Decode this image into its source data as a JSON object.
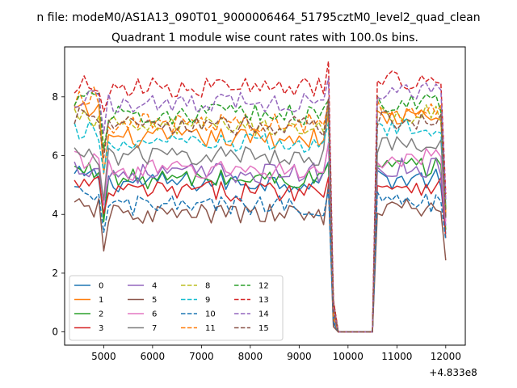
{
  "chart_data": {
    "type": "line",
    "suptitle": "n file: modeM0/AS1A13_090T01_9000006464_51795cztM0_level2_quad_clean",
    "title": "Quadrant 1 module wise count rates with 100.0s bins.",
    "xlabel": "",
    "ylabel": "",
    "x_offset_label": "+4.833e8",
    "xlim": [
      4200,
      12400
    ],
    "ylim": [
      -0.45,
      9.7
    ],
    "x_ticks": [
      5000,
      6000,
      7000,
      8000,
      9000,
      10000,
      11000,
      12000
    ],
    "x_tick_labels": [
      "5000",
      "6000",
      "7000",
      "8000",
      "9000",
      "10000",
      "11000",
      "12000"
    ],
    "y_ticks": [
      0,
      2,
      4,
      6,
      8
    ],
    "y_tick_labels": [
      "0",
      "2",
      "4",
      "6",
      "8"
    ],
    "grid": false,
    "legend_placement": "lower-left",
    "legend_columns": 4,
    "x_range": {
      "start": 4400,
      "end": 12000,
      "step": 100
    },
    "gap": {
      "start": 9800,
      "end": 10500,
      "value": 0.0
    },
    "series": [
      {
        "name": "0",
        "color": "#1f77b4",
        "dash": "solid",
        "segments": [
          {
            "from": 4400,
            "to": 4900,
            "level": 5.3
          },
          {
            "from": 5000,
            "to": 5000,
            "level": 4.0
          },
          {
            "from": 5100,
            "to": 9500,
            "level": 5.1
          },
          {
            "from": 9600,
            "to": 9600,
            "level": 5.9
          },
          {
            "from": 9700,
            "to": 9700,
            "level": 0.6
          },
          {
            "from": 10600,
            "to": 10600,
            "level": 5.3
          },
          {
            "from": 10700,
            "to": 11900,
            "level": 5.2
          },
          {
            "from": 12000,
            "to": 12000,
            "level": 3.2
          }
        ]
      },
      {
        "name": "1",
        "color": "#ff7f0e",
        "dash": "solid",
        "segments": [
          {
            "from": 4400,
            "to": 4900,
            "level": 7.5
          },
          {
            "from": 5000,
            "to": 5000,
            "level": 5.6
          },
          {
            "from": 5100,
            "to": 9500,
            "level": 6.6
          },
          {
            "from": 9600,
            "to": 9600,
            "level": 7.6
          },
          {
            "from": 9700,
            "to": 9700,
            "level": 0.8
          },
          {
            "from": 10600,
            "to": 10600,
            "level": 7.4
          },
          {
            "from": 10700,
            "to": 11900,
            "level": 7.3
          },
          {
            "from": 12000,
            "to": 12000,
            "level": 4.0
          }
        ]
      },
      {
        "name": "2",
        "color": "#2ca02c",
        "dash": "solid",
        "segments": [
          {
            "from": 4400,
            "to": 4900,
            "level": 5.5
          },
          {
            "from": 5000,
            "to": 5000,
            "level": 4.1
          },
          {
            "from": 5100,
            "to": 9500,
            "level": 5.2
          },
          {
            "from": 9600,
            "to": 9600,
            "level": 6.0
          },
          {
            "from": 9700,
            "to": 9700,
            "level": 0.6
          },
          {
            "from": 10600,
            "to": 10600,
            "level": 5.6
          },
          {
            "from": 10700,
            "to": 11900,
            "level": 5.6
          },
          {
            "from": 12000,
            "to": 12000,
            "level": 3.3
          }
        ]
      },
      {
        "name": "3",
        "color": "#d62728",
        "dash": "solid",
        "segments": [
          {
            "from": 4400,
            "to": 4900,
            "level": 5.0
          },
          {
            "from": 5000,
            "to": 5000,
            "level": 3.8
          },
          {
            "from": 5100,
            "to": 9500,
            "level": 4.8
          },
          {
            "from": 9600,
            "to": 9600,
            "level": 5.6
          },
          {
            "from": 9700,
            "to": 9700,
            "level": 0.5
          },
          {
            "from": 10600,
            "to": 10600,
            "level": 5.0
          },
          {
            "from": 10700,
            "to": 11900,
            "level": 5.0
          },
          {
            "from": 12000,
            "to": 12000,
            "level": 3.0
          }
        ]
      },
      {
        "name": "4",
        "color": "#9467bd",
        "dash": "solid",
        "segments": [
          {
            "from": 4400,
            "to": 4900,
            "level": 5.6
          },
          {
            "from": 5000,
            "to": 5000,
            "level": 4.3
          },
          {
            "from": 5100,
            "to": 9500,
            "level": 5.4
          },
          {
            "from": 9600,
            "to": 9600,
            "level": 6.1
          },
          {
            "from": 9700,
            "to": 9700,
            "level": 0.6
          },
          {
            "from": 10600,
            "to": 10600,
            "level": 5.7
          },
          {
            "from": 10700,
            "to": 11900,
            "level": 5.6
          },
          {
            "from": 12000,
            "to": 12000,
            "level": 3.4
          }
        ]
      },
      {
        "name": "5",
        "color": "#8c564b",
        "dash": "solid",
        "segments": [
          {
            "from": 4400,
            "to": 4900,
            "level": 4.2
          },
          {
            "from": 5000,
            "to": 5000,
            "level": 2.8
          },
          {
            "from": 5100,
            "to": 9500,
            "level": 4.0
          },
          {
            "from": 9600,
            "to": 9600,
            "level": 4.8
          },
          {
            "from": 9700,
            "to": 9700,
            "level": 0.4
          },
          {
            "from": 10600,
            "to": 10600,
            "level": 4.2
          },
          {
            "from": 10700,
            "to": 11900,
            "level": 4.2
          },
          {
            "from": 12000,
            "to": 12000,
            "level": 2.2
          }
        ]
      },
      {
        "name": "6",
        "color": "#e377c2",
        "dash": "solid",
        "segments": [
          {
            "from": 4400,
            "to": 4900,
            "level": 5.9
          },
          {
            "from": 5000,
            "to": 5000,
            "level": 4.5
          },
          {
            "from": 5100,
            "to": 9500,
            "level": 5.5
          },
          {
            "from": 9600,
            "to": 9600,
            "level": 6.3
          },
          {
            "from": 9700,
            "to": 9700,
            "level": 0.7
          },
          {
            "from": 10600,
            "to": 10600,
            "level": 6.0
          },
          {
            "from": 10700,
            "to": 11900,
            "level": 5.9
          },
          {
            "from": 12000,
            "to": 12000,
            "level": 3.5
          }
        ]
      },
      {
        "name": "7",
        "color": "#7f7f7f",
        "dash": "solid",
        "segments": [
          {
            "from": 4400,
            "to": 4900,
            "level": 6.0
          },
          {
            "from": 5000,
            "to": 5000,
            "level": 4.8
          },
          {
            "from": 5100,
            "to": 9500,
            "level": 6.0
          },
          {
            "from": 9600,
            "to": 9600,
            "level": 7.8
          },
          {
            "from": 9700,
            "to": 9700,
            "level": 0.7
          },
          {
            "from": 10600,
            "to": 10600,
            "level": 6.4
          },
          {
            "from": 10700,
            "to": 11900,
            "level": 6.3
          },
          {
            "from": 12000,
            "to": 12000,
            "level": 3.6
          }
        ]
      },
      {
        "name": "8",
        "color": "#bcbd22",
        "dash": "dashed",
        "segments": [
          {
            "from": 4400,
            "to": 4900,
            "level": 7.3
          },
          {
            "from": 5000,
            "to": 5000,
            "level": 5.9
          },
          {
            "from": 5100,
            "to": 9500,
            "level": 7.0
          },
          {
            "from": 9600,
            "to": 9600,
            "level": 7.8
          },
          {
            "from": 9700,
            "to": 9700,
            "level": 0.8
          },
          {
            "from": 10600,
            "to": 10600,
            "level": 7.3
          },
          {
            "from": 10700,
            "to": 11900,
            "level": 7.4
          },
          {
            "from": 12000,
            "to": 12000,
            "level": 4.2
          }
        ]
      },
      {
        "name": "9",
        "color": "#17becf",
        "dash": "dashed",
        "segments": [
          {
            "from": 4400,
            "to": 4900,
            "level": 6.8
          },
          {
            "from": 5000,
            "to": 5000,
            "level": 5.3
          },
          {
            "from": 5100,
            "to": 9500,
            "level": 6.4
          },
          {
            "from": 9600,
            "to": 9600,
            "level": 7.2
          },
          {
            "from": 9700,
            "to": 9700,
            "level": 0.7
          },
          {
            "from": 10600,
            "to": 10600,
            "level": 6.9
          },
          {
            "from": 10700,
            "to": 11900,
            "level": 6.9
          },
          {
            "from": 12000,
            "to": 12000,
            "level": 4.0
          }
        ]
      },
      {
        "name": "10",
        "color": "#1f77b4",
        "dash": "dashed",
        "segments": [
          {
            "from": 4400,
            "to": 4900,
            "level": 4.6
          },
          {
            "from": 5000,
            "to": 5000,
            "level": 3.4
          },
          {
            "from": 5100,
            "to": 9500,
            "level": 4.3
          },
          {
            "from": 9600,
            "to": 9600,
            "level": 5.0
          },
          {
            "from": 9700,
            "to": 9700,
            "level": 0.5
          },
          {
            "from": 10600,
            "to": 10600,
            "level": 4.6
          },
          {
            "from": 10700,
            "to": 11900,
            "level": 4.4
          },
          {
            "from": 12000,
            "to": 12000,
            "level": 2.8
          }
        ]
      },
      {
        "name": "11",
        "color": "#ff7f0e",
        "dash": "dashed",
        "segments": [
          {
            "from": 4400,
            "to": 4900,
            "level": 8.0
          },
          {
            "from": 5000,
            "to": 5000,
            "level": 6.3
          },
          {
            "from": 5100,
            "to": 9500,
            "level": 7.1
          },
          {
            "from": 9600,
            "to": 9600,
            "level": 8.0
          },
          {
            "from": 9700,
            "to": 9700,
            "level": 0.8
          },
          {
            "from": 10600,
            "to": 10600,
            "level": 7.8
          },
          {
            "from": 10700,
            "to": 11900,
            "level": 7.5
          },
          {
            "from": 12000,
            "to": 12000,
            "level": 4.4
          }
        ]
      },
      {
        "name": "12",
        "color": "#2ca02c",
        "dash": "dashed",
        "segments": [
          {
            "from": 4400,
            "to": 4900,
            "level": 8.0
          },
          {
            "from": 5000,
            "to": 5000,
            "level": 6.5
          },
          {
            "from": 5100,
            "to": 9500,
            "level": 7.4
          },
          {
            "from": 9600,
            "to": 9600,
            "level": 8.2
          },
          {
            "from": 9700,
            "to": 9700,
            "level": 0.8
          },
          {
            "from": 10600,
            "to": 10600,
            "level": 8.0
          },
          {
            "from": 10700,
            "to": 11900,
            "level": 7.8
          },
          {
            "from": 12000,
            "to": 12000,
            "level": 4.5
          }
        ]
      },
      {
        "name": "13",
        "color": "#d62728",
        "dash": "dashed",
        "segments": [
          {
            "from": 4400,
            "to": 4900,
            "level": 8.4
          },
          {
            "from": 5000,
            "to": 5000,
            "level": 7.2
          },
          {
            "from": 5100,
            "to": 9500,
            "level": 8.3
          },
          {
            "from": 9600,
            "to": 9600,
            "level": 8.9
          },
          {
            "from": 9700,
            "to": 9700,
            "level": 0.9
          },
          {
            "from": 10600,
            "to": 10600,
            "level": 8.6
          },
          {
            "from": 10700,
            "to": 11900,
            "level": 8.6
          },
          {
            "from": 12000,
            "to": 12000,
            "level": 5.0
          }
        ]
      },
      {
        "name": "14",
        "color": "#9467bd",
        "dash": "dashed",
        "segments": [
          {
            "from": 4400,
            "to": 4900,
            "level": 7.9
          },
          {
            "from": 5000,
            "to": 5000,
            "level": 6.6
          },
          {
            "from": 5100,
            "to": 9500,
            "level": 7.8
          },
          {
            "from": 9600,
            "to": 9600,
            "level": 8.4
          },
          {
            "from": 9700,
            "to": 9700,
            "level": 0.8
          },
          {
            "from": 10600,
            "to": 10600,
            "level": 8.1
          },
          {
            "from": 10700,
            "to": 11900,
            "level": 8.2
          },
          {
            "from": 12000,
            "to": 12000,
            "level": 4.8
          }
        ]
      },
      {
        "name": "15",
        "color": "#8c564b",
        "dash": "dashed",
        "segments": [
          {
            "from": 4400,
            "to": 4900,
            "level": 7.3
          },
          {
            "from": 5000,
            "to": 5000,
            "level": 5.9
          },
          {
            "from": 5100,
            "to": 9500,
            "level": 7.0
          },
          {
            "from": 9600,
            "to": 9600,
            "level": 7.8
          },
          {
            "from": 9700,
            "to": 9700,
            "level": 0.8
          },
          {
            "from": 10600,
            "to": 10600,
            "level": 7.2
          },
          {
            "from": 10700,
            "to": 11900,
            "level": 7.2
          },
          {
            "from": 12000,
            "to": 12000,
            "level": 4.2
          }
        ]
      }
    ]
  }
}
